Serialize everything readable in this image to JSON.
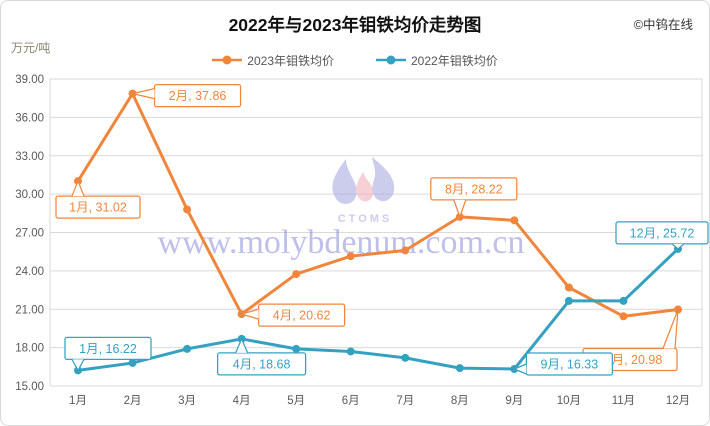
{
  "header": {
    "title": "2022年与2023年钼铁均价走势图",
    "copyright": "©中钨在线"
  },
  "watermark": {
    "url_text": "www.molybdenum.com.cn",
    "logo_text": "CTOMS"
  },
  "chart_data": {
    "type": "line",
    "title": "2022年与2023年钼铁均价走势图",
    "ylabel_unit": "万元/吨",
    "ylim": [
      15,
      39
    ],
    "grid": "horizontal",
    "legend_position": "top-center",
    "yticks": [
      "39.00",
      "36.00",
      "33.00",
      "30.00",
      "27.00",
      "24.00",
      "21.00",
      "18.00",
      "15.00"
    ],
    "categories": [
      "1月",
      "2月",
      "3月",
      "4月",
      "5月",
      "6月",
      "7月",
      "8月",
      "9月",
      "10月",
      "11月",
      "12月"
    ],
    "series": [
      {
        "name": "2023年钼铁均价",
        "color": "#F0863C",
        "values": [
          31.02,
          37.86,
          28.8,
          20.62,
          23.75,
          25.15,
          25.6,
          28.22,
          27.95,
          22.7,
          20.45,
          20.98
        ]
      },
      {
        "name": "2022年钼铁均价",
        "color": "#35A1C1",
        "values": [
          16.22,
          16.8,
          17.9,
          18.68,
          17.9,
          17.7,
          17.2,
          16.4,
          16.33,
          21.65,
          21.65,
          25.72
        ]
      }
    ],
    "annotations": [
      {
        "series": 0,
        "month_index": 0,
        "label": "1月, 31.02"
      },
      {
        "series": 0,
        "month_index": 1,
        "label": "2月, 37.86"
      },
      {
        "series": 0,
        "month_index": 3,
        "label": "4月, 20.62"
      },
      {
        "series": 0,
        "month_index": 7,
        "label": "8月, 28.22"
      },
      {
        "series": 0,
        "month_index": 11,
        "label": "12月, 20.98"
      },
      {
        "series": 1,
        "month_index": 0,
        "label": "1月, 16.22"
      },
      {
        "series": 1,
        "month_index": 3,
        "label": "4月, 18.68"
      },
      {
        "series": 1,
        "month_index": 8,
        "label": "9月, 16.33"
      },
      {
        "series": 1,
        "month_index": 11,
        "label": "12月, 25.72"
      }
    ]
  }
}
